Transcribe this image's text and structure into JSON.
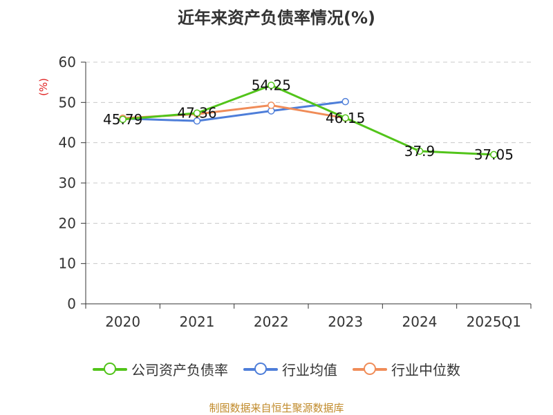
{
  "chart_data": {
    "type": "line",
    "title": "近年来资产负债率情况(%)",
    "ylabel": "(%)",
    "xlabel": "",
    "categories": [
      "2020",
      "2021",
      "2022",
      "2023",
      "2024",
      "2025Q1"
    ],
    "ylim": [
      0,
      60
    ],
    "yticks": [
      0,
      10,
      20,
      30,
      40,
      50,
      60
    ],
    "grid": true,
    "legend_position": "bottom",
    "series": [
      {
        "name": "公司资产负债率",
        "color": "#52c41a",
        "values": [
          45.79,
          47.36,
          54.25,
          46.15,
          37.9,
          37.05
        ],
        "labels": [
          "45.79",
          "47.36",
          "54.25",
          "46.15",
          "37.9",
          "37.05"
        ]
      },
      {
        "name": "行业均值",
        "color": "#4e7ed9",
        "values": [
          46.0,
          45.4,
          47.9,
          50.2,
          null,
          null
        ]
      },
      {
        "name": "行业中位数",
        "color": "#f08c58",
        "values": [
          46.1,
          47.1,
          49.3,
          46.1,
          null,
          null
        ]
      }
    ]
  },
  "source": "制图数据来自恒生聚源数据库"
}
